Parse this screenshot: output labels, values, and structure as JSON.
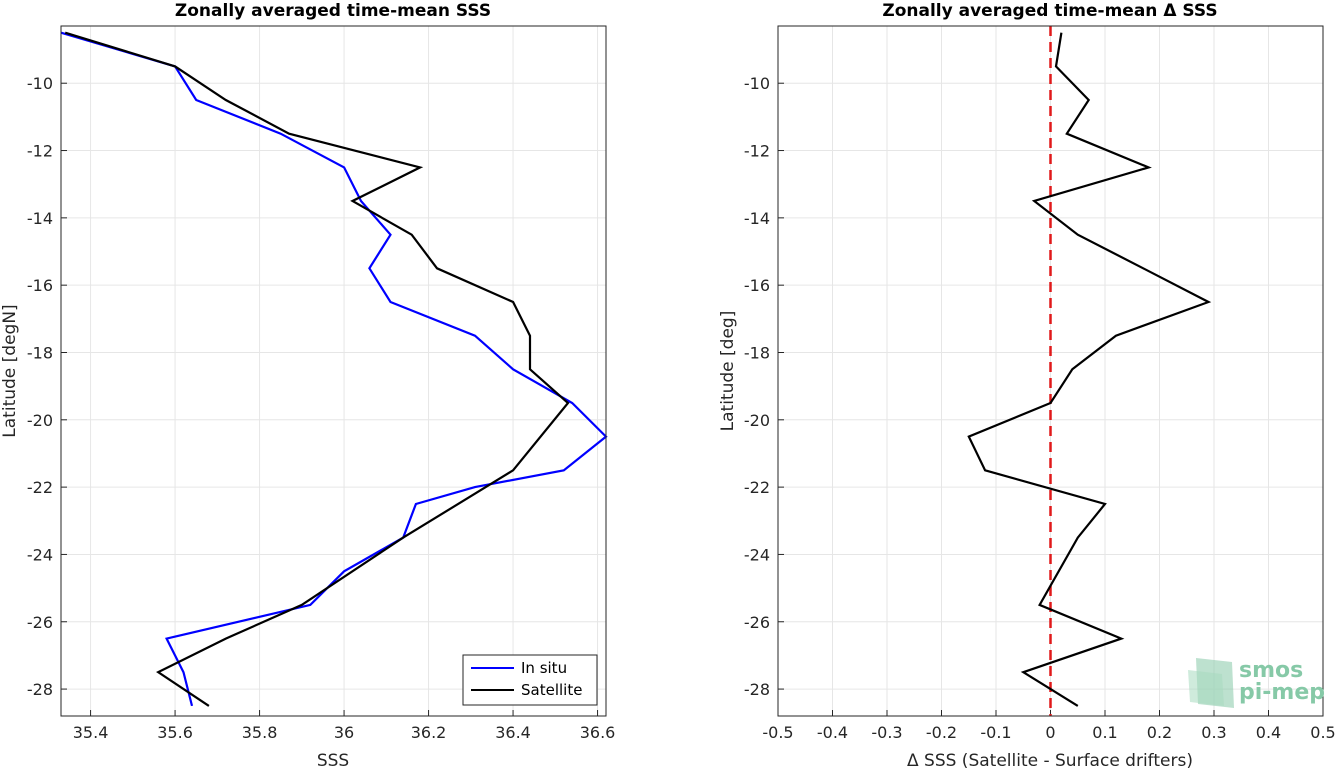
{
  "chart_data": [
    {
      "type": "line",
      "title": "Zonally averaged time-mean SSS",
      "xlabel": "SSS",
      "ylabel": "Latitude [degN]",
      "xlim": [
        35.33,
        36.62
      ],
      "ylim": [
        -28.8,
        -8.3
      ],
      "xticks": [
        35.4,
        35.6,
        35.8,
        36,
        36.2,
        36.4,
        36.6
      ],
      "xtick_labels": [
        "35.4",
        "35.6",
        "35.8",
        "36",
        "36.2",
        "36.4",
        "36.6"
      ],
      "yticks": [
        -10,
        -12,
        -14,
        -16,
        -18,
        -20,
        -22,
        -24,
        -26,
        -28
      ],
      "ytick_labels": [
        "-10",
        "-12",
        "-14",
        "-16",
        "-18",
        "-20",
        "-22",
        "-24",
        "-26",
        "-28"
      ],
      "grid": true,
      "legend_position": "bottom-right",
      "series": [
        {
          "name": "In situ",
          "color": "#0000ff",
          "x": [
            35.33,
            35.6,
            35.65,
            35.85,
            36.0,
            36.04,
            36.11,
            36.06,
            36.11,
            36.31,
            36.4,
            36.54,
            36.62,
            36.52,
            36.31,
            36.17,
            36.14,
            36.0,
            35.92,
            35.58,
            35.62,
            35.64
          ],
          "y": [
            -8.5,
            -9.5,
            -10.5,
            -11.5,
            -12.5,
            -13.5,
            -14.5,
            -15.5,
            -16.5,
            -17.5,
            -18.5,
            -19.5,
            -20.5,
            -21.5,
            -22.0,
            -22.5,
            -23.5,
            -24.5,
            -25.5,
            -26.5,
            -27.5,
            -28.5
          ]
        },
        {
          "name": "Satellite",
          "color": "#000000",
          "x": [
            35.34,
            35.6,
            35.72,
            35.87,
            36.18,
            36.02,
            36.16,
            36.22,
            36.4,
            36.44,
            36.44,
            36.53,
            36.4,
            36.14,
            35.9,
            35.72,
            35.56,
            35.68
          ],
          "y": [
            -8.5,
            -9.5,
            -10.5,
            -11.5,
            -12.5,
            -13.5,
            -14.5,
            -15.5,
            -16.5,
            -17.5,
            -18.5,
            -19.5,
            -21.5,
            -23.5,
            -25.5,
            -26.5,
            -27.5,
            -28.5
          ]
        }
      ]
    },
    {
      "type": "line",
      "title": "Zonally averaged time-mean Δ SSS",
      "xlabel": "Δ SSS (Satellite - Surface drifters)",
      "ylabel": "Latitude [deg]",
      "xlim": [
        -0.5,
        0.5
      ],
      "ylim": [
        -28.8,
        -8.3
      ],
      "xticks": [
        -0.5,
        -0.4,
        -0.3,
        -0.2,
        -0.1,
        0,
        0.1,
        0.2,
        0.3,
        0.4,
        0.5
      ],
      "xtick_labels": [
        "-0.5",
        "-0.4",
        "-0.3",
        "-0.2",
        "-0.1",
        "0",
        "0.1",
        "0.2",
        "0.3",
        "0.4",
        "0.5"
      ],
      "yticks": [
        -10,
        -12,
        -14,
        -16,
        -18,
        -20,
        -22,
        -24,
        -26,
        -28
      ],
      "ytick_labels": [
        "-10",
        "-12",
        "-14",
        "-16",
        "-18",
        "-20",
        "-22",
        "-24",
        "-26",
        "-28"
      ],
      "grid": true,
      "reference_line": {
        "x": 0,
        "color": "#e0191a",
        "style": "dashed"
      },
      "series": [
        {
          "color": "#000000",
          "x": [
            0.02,
            0.01,
            0.07,
            0.03,
            0.18,
            -0.03,
            0.05,
            0.17,
            0.29,
            0.12,
            0.04,
            0.0,
            -0.15,
            -0.12,
            0.1,
            0.05,
            -0.02,
            0.13,
            -0.05,
            0.05
          ],
          "y": [
            -8.5,
            -9.5,
            -10.5,
            -11.5,
            -12.5,
            -13.5,
            -14.5,
            -15.5,
            -16.5,
            -17.5,
            -18.5,
            -19.5,
            -20.5,
            -21.5,
            -22.5,
            -23.5,
            -25.5,
            -26.5,
            -27.5,
            -28.5
          ]
        }
      ]
    }
  ],
  "logo": {
    "line1": "smos",
    "line2": "pi-mep",
    "color": "#86c9a7"
  }
}
